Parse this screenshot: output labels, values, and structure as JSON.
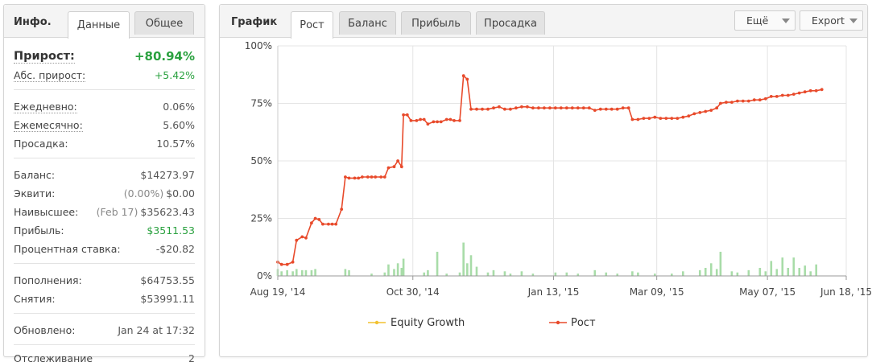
{
  "info": {
    "title": "Инфо.",
    "tabs": [
      "Данные",
      "Общее"
    ],
    "gain_label": "Прирост:",
    "gain_value": "+80.94%",
    "abs_gain_label": "Абс. прирост:",
    "abs_gain_value": "+5.42%",
    "daily_label": "Ежедневно:",
    "daily_value": "0.06%",
    "monthly_label": "Ежемесячно:",
    "monthly_value": "5.60%",
    "drawdown_label": "Просадка:",
    "drawdown_value": "10.57%",
    "balance_label": "Баланс:",
    "balance_value": "$14273.97",
    "equity_label": "Эквити:",
    "equity_pct": "(0.00%)",
    "equity_value": "$0.00",
    "highest_label": "Наивысшее:",
    "highest_date": "(Feb 17)",
    "highest_value": "$35623.43",
    "profit_label": "Прибыль:",
    "profit_value": "$3511.53",
    "interest_label": "Процентная ставка:",
    "interest_value": "-$20.82",
    "deposits_label": "Пополнения:",
    "deposits_value": "$64753.55",
    "withdrawals_label": "Снятия:",
    "withdrawals_value": "$53991.11",
    "updated_label": "Обновлено:",
    "updated_value": "Jan 24 at 17:32",
    "tracking_label": "Отслеживание",
    "tracking_value": "2"
  },
  "chart_panel": {
    "title": "График",
    "tabs": [
      "Рост",
      "Баланс",
      "Прибыль",
      "Просадка"
    ],
    "more_label": "Ещё",
    "export_label": "Export"
  },
  "colors": {
    "growth": "#e84a2b",
    "equity": "#f2c230",
    "bars": "#a8dca8",
    "gain": "#2aa13f"
  },
  "chart_data": {
    "type": "line",
    "title": "",
    "xlabel": "",
    "ylabel": "",
    "ylim": [
      0,
      100
    ],
    "y_ticks": [
      "0%",
      "25%",
      "50%",
      "75%",
      "100%"
    ],
    "x_ticks": [
      "Aug 19, '14",
      "Oct 30, '14",
      "Jan 13, '15",
      "Mar 09, '15",
      "May 07, '15",
      "Jun 18, '15"
    ],
    "x_range": [
      "2014-08-19",
      "2015-06-18"
    ],
    "legend": [
      "Equity Growth",
      "Рост"
    ],
    "legend_position": "bottom",
    "series": [
      {
        "name": "Рост",
        "points": [
          [
            "2014-08-19",
            6.0
          ],
          [
            "2014-08-21",
            5.0
          ],
          [
            "2014-08-24",
            5.0
          ],
          [
            "2014-08-27",
            6.0
          ],
          [
            "2014-08-29",
            15.5
          ],
          [
            "2014-09-01",
            17.0
          ],
          [
            "2014-09-03",
            16.5
          ],
          [
            "2014-09-06",
            23.0
          ],
          [
            "2014-09-08",
            25.0
          ],
          [
            "2014-09-10",
            24.5
          ],
          [
            "2014-09-12",
            22.5
          ],
          [
            "2014-09-15",
            22.5
          ],
          [
            "2014-09-17",
            22.5
          ],
          [
            "2014-09-19",
            22.5
          ],
          [
            "2014-09-22",
            29.0
          ],
          [
            "2014-09-24",
            43.0
          ],
          [
            "2014-09-26",
            42.5
          ],
          [
            "2014-09-29",
            42.5
          ],
          [
            "2014-10-01",
            42.5
          ],
          [
            "2014-10-03",
            43.0
          ],
          [
            "2014-10-06",
            43.0
          ],
          [
            "2014-10-08",
            43.0
          ],
          [
            "2014-10-10",
            43.0
          ],
          [
            "2014-10-13",
            43.0
          ],
          [
            "2014-10-15",
            43.0
          ],
          [
            "2014-10-17",
            47.0
          ],
          [
            "2014-10-20",
            47.5
          ],
          [
            "2014-10-22",
            50.0
          ],
          [
            "2014-10-24",
            47.5
          ],
          [
            "2014-10-25",
            70.0
          ],
          [
            "2014-10-27",
            70.0
          ],
          [
            "2014-10-29",
            67.5
          ],
          [
            "2014-11-01",
            67.5
          ],
          [
            "2014-11-03",
            68.0
          ],
          [
            "2014-11-05",
            68.0
          ],
          [
            "2014-11-07",
            66.0
          ],
          [
            "2014-11-10",
            67.0
          ],
          [
            "2014-11-12",
            67.0
          ],
          [
            "2014-11-14",
            67.0
          ],
          [
            "2014-11-17",
            68.0
          ],
          [
            "2014-11-19",
            68.0
          ],
          [
            "2014-11-21",
            67.5
          ],
          [
            "2014-11-24",
            67.5
          ],
          [
            "2014-11-26",
            87.0
          ],
          [
            "2014-11-28",
            85.5
          ],
          [
            "2014-11-30",
            72.5
          ],
          [
            "2014-12-03",
            72.5
          ],
          [
            "2014-12-06",
            72.5
          ],
          [
            "2014-12-09",
            72.5
          ],
          [
            "2014-12-12",
            73.0
          ],
          [
            "2014-12-15",
            73.5
          ],
          [
            "2014-12-18",
            72.5
          ],
          [
            "2014-12-21",
            72.5
          ],
          [
            "2014-12-24",
            73.0
          ],
          [
            "2014-12-27",
            73.5
          ],
          [
            "2014-12-30",
            73.5
          ],
          [
            "2015-01-02",
            73.0
          ],
          [
            "2015-01-05",
            73.0
          ],
          [
            "2015-01-08",
            73.0
          ],
          [
            "2015-01-11",
            73.0
          ],
          [
            "2015-01-14",
            73.0
          ],
          [
            "2015-01-17",
            73.0
          ],
          [
            "2015-01-20",
            73.0
          ],
          [
            "2015-01-23",
            73.0
          ],
          [
            "2015-01-26",
            73.0
          ],
          [
            "2015-01-29",
            73.0
          ],
          [
            "2015-02-01",
            73.0
          ],
          [
            "2015-02-04",
            72.0
          ],
          [
            "2015-02-07",
            72.5
          ],
          [
            "2015-02-10",
            72.5
          ],
          [
            "2015-02-13",
            72.5
          ],
          [
            "2015-02-16",
            72.5
          ],
          [
            "2015-02-19",
            73.0
          ],
          [
            "2015-02-22",
            73.0
          ],
          [
            "2015-02-24",
            68.0
          ],
          [
            "2015-02-27",
            68.0
          ],
          [
            "2015-03-02",
            68.5
          ],
          [
            "2015-03-05",
            68.5
          ],
          [
            "2015-03-08",
            69.0
          ],
          [
            "2015-03-11",
            68.5
          ],
          [
            "2015-03-14",
            68.5
          ],
          [
            "2015-03-17",
            68.5
          ],
          [
            "2015-03-20",
            68.5
          ],
          [
            "2015-03-23",
            69.0
          ],
          [
            "2015-03-26",
            69.5
          ],
          [
            "2015-03-29",
            70.5
          ],
          [
            "2015-04-01",
            71.0
          ],
          [
            "2015-04-04",
            71.5
          ],
          [
            "2015-04-07",
            72.0
          ],
          [
            "2015-04-10",
            73.0
          ],
          [
            "2015-04-12",
            75.0
          ],
          [
            "2015-04-15",
            75.5
          ],
          [
            "2015-04-18",
            75.5
          ],
          [
            "2015-04-21",
            76.0
          ],
          [
            "2015-04-24",
            76.0
          ],
          [
            "2015-04-27",
            76.0
          ],
          [
            "2015-04-30",
            76.5
          ],
          [
            "2015-05-03",
            76.5
          ],
          [
            "2015-05-06",
            77.0
          ],
          [
            "2015-05-09",
            78.0
          ],
          [
            "2015-05-12",
            78.0
          ],
          [
            "2015-05-15",
            78.5
          ],
          [
            "2015-05-18",
            78.5
          ],
          [
            "2015-05-21",
            79.0
          ],
          [
            "2015-05-24",
            79.5
          ],
          [
            "2015-05-27",
            80.0
          ],
          [
            "2015-05-30",
            80.5
          ],
          [
            "2015-06-02",
            80.5
          ],
          [
            "2015-06-05",
            81.0
          ]
        ]
      },
      {
        "name": "Equity Growth",
        "points": []
      }
    ],
    "volume_bars": [
      [
        "2014-08-19",
        3
      ],
      [
        "2014-08-21",
        2
      ],
      [
        "2014-08-24",
        2.5
      ],
      [
        "2014-08-27",
        2
      ],
      [
        "2014-08-29",
        3
      ],
      [
        "2014-09-01",
        2.5
      ],
      [
        "2014-09-03",
        2.5
      ],
      [
        "2014-09-06",
        2.5
      ],
      [
        "2014-09-08",
        3
      ],
      [
        "2014-09-24",
        3
      ],
      [
        "2014-09-26",
        2.5
      ],
      [
        "2014-10-08",
        1
      ],
      [
        "2014-10-15",
        1.5
      ],
      [
        "2014-10-17",
        5
      ],
      [
        "2014-10-20",
        3
      ],
      [
        "2014-10-22",
        5.5
      ],
      [
        "2014-10-24",
        3.5
      ],
      [
        "2014-10-25",
        7.5
      ],
      [
        "2014-11-05",
        1.5
      ],
      [
        "2014-11-07",
        2.5
      ],
      [
        "2014-11-12",
        10.5
      ],
      [
        "2014-11-17",
        1
      ],
      [
        "2014-11-24",
        1.5
      ],
      [
        "2014-11-26",
        14.5
      ],
      [
        "2014-11-28",
        5.5
      ],
      [
        "2014-11-30",
        9
      ],
      [
        "2014-12-03",
        4
      ],
      [
        "2014-12-09",
        1.5
      ],
      [
        "2014-12-12",
        2.5
      ],
      [
        "2014-12-18",
        2
      ],
      [
        "2014-12-21",
        1
      ],
      [
        "2014-12-27",
        2
      ],
      [
        "2015-01-02",
        1
      ],
      [
        "2015-01-14",
        1.5
      ],
      [
        "2015-01-20",
        1.5
      ],
      [
        "2015-01-26",
        1
      ],
      [
        "2015-02-04",
        2.5
      ],
      [
        "2015-02-10",
        1.5
      ],
      [
        "2015-02-16",
        1
      ],
      [
        "2015-02-24",
        2
      ],
      [
        "2015-02-27",
        1.5
      ],
      [
        "2015-03-08",
        1
      ],
      [
        "2015-03-17",
        1
      ],
      [
        "2015-03-23",
        2
      ],
      [
        "2015-04-01",
        2.5
      ],
      [
        "2015-04-04",
        3.5
      ],
      [
        "2015-04-07",
        5.5
      ],
      [
        "2015-04-10",
        3
      ],
      [
        "2015-04-12",
        10.5
      ],
      [
        "2015-04-18",
        2
      ],
      [
        "2015-04-21",
        1.5
      ],
      [
        "2015-04-27",
        2.5
      ],
      [
        "2015-05-03",
        3.5
      ],
      [
        "2015-05-06",
        2
      ],
      [
        "2015-05-09",
        6.5
      ],
      [
        "2015-05-12",
        3
      ],
      [
        "2015-05-15",
        8
      ],
      [
        "2015-05-18",
        3.5
      ],
      [
        "2015-05-21",
        8
      ],
      [
        "2015-05-24",
        3.5
      ],
      [
        "2015-05-27",
        4.5
      ],
      [
        "2015-05-30",
        2
      ],
      [
        "2015-06-02",
        5
      ]
    ]
  }
}
